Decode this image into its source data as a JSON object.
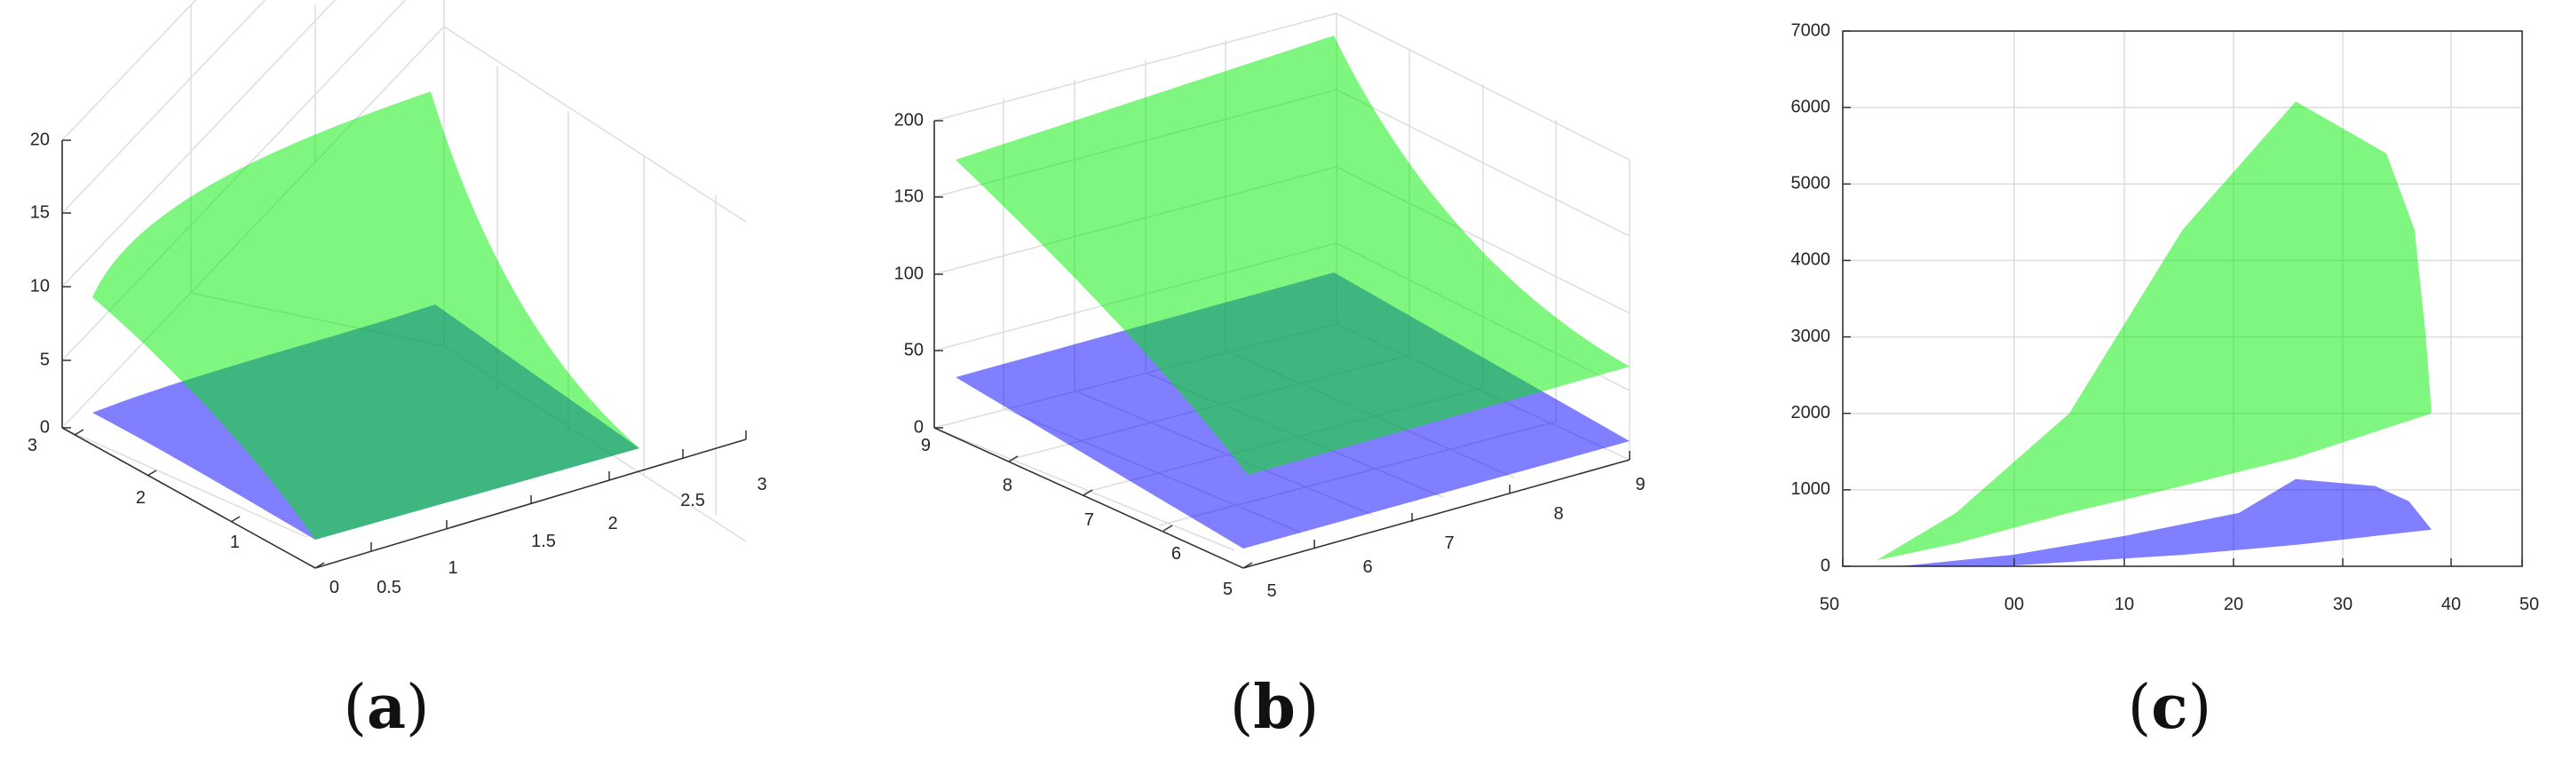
{
  "figure": {
    "panels": [
      {
        "caption_open": "(",
        "caption_letter": "a",
        "caption_close": ")"
      },
      {
        "caption_open": "(",
        "caption_letter": "b",
        "caption_close": ")"
      },
      {
        "caption_open": "(",
        "caption_letter": "c",
        "caption_close": ")"
      }
    ]
  },
  "colors": {
    "upper_surface": "#00ee00",
    "lower_surface": "#0000ff",
    "grid": "#dddddd",
    "axis": "#333333"
  },
  "chart_data": [
    {
      "type": "surface3d",
      "title": "",
      "zlabel": "",
      "x_ticks": [
        "0.5",
        "1",
        "1.5",
        "2",
        "2.5",
        "3"
      ],
      "y_ticks": [
        "0",
        "1",
        "2",
        "3"
      ],
      "z_ticks": [
        "0",
        "5",
        "10",
        "15",
        "20"
      ],
      "xlim": [
        0.5,
        3
      ],
      "ylim": [
        0,
        3
      ],
      "zlim": [
        0,
        20
      ],
      "grid": true,
      "surfaces": [
        {
          "name": "",
          "color": "upper_surface",
          "corners": {
            "x_min_y_min": 0,
            "x_max_y_min": 0,
            "x_min_y_max": 9,
            "x_max_y_max": 20
          }
        },
        {
          "name": "",
          "color": "lower_surface",
          "corners": {
            "x_min_y_min": 0,
            "x_max_y_min": 0,
            "x_min_y_max": 1,
            "x_max_y_max": 5
          }
        }
      ]
    },
    {
      "type": "surface3d",
      "title": "",
      "zlabel": "",
      "x_ticks": [
        "5",
        "6",
        "7",
        "8",
        "9"
      ],
      "y_ticks": [
        "5",
        "6",
        "7",
        "8",
        "9"
      ],
      "z_ticks": [
        "0",
        "50",
        "100",
        "150",
        "200"
      ],
      "xlim": [
        5,
        9
      ],
      "ylim": [
        5,
        9
      ],
      "zlim": [
        0,
        200
      ],
      "grid": true,
      "surfaces": [
        {
          "name": "",
          "color": "upper_surface",
          "corners": {
            "x_min_y_min": 20,
            "x_max_y_min": 40,
            "x_min_y_max": 180,
            "x_max_y_max": 200
          }
        },
        {
          "name": "",
          "color": "lower_surface",
          "corners": {
            "x_min_y_min": 0,
            "x_max_y_min": 0,
            "x_min_y_max": 35,
            "x_max_y_max": 40
          }
        }
      ]
    },
    {
      "type": "area",
      "title": "",
      "xlabel": "",
      "ylabel": "",
      "x_ticks": [
        "50",
        "00",
        "10",
        "20",
        "30",
        "40",
        "50"
      ],
      "y_ticks": [
        "0",
        "1000",
        "2000",
        "3000",
        "4000",
        "5000",
        "6000",
        "7000"
      ],
      "xlim": [
        0,
        6
      ],
      "ylim": [
        0,
        7000
      ],
      "grid": true,
      "series": [
        {
          "name": "",
          "color": "upper_surface",
          "upper": [
            [
              0.3,
              80
            ],
            [
              1.0,
              700
            ],
            [
              2.0,
              2000
            ],
            [
              3.0,
              4400
            ],
            [
              4.0,
              6080
            ],
            [
              4.8,
              5400
            ],
            [
              5.05,
              4400
            ],
            [
              5.15,
              3000
            ],
            [
              5.2,
              2000
            ]
          ],
          "lower": [
            [
              0.3,
              80
            ],
            [
              1.0,
              300
            ],
            [
              2.0,
              700
            ],
            [
              3.0,
              1050
            ],
            [
              4.0,
              1420
            ],
            [
              5.2,
              2000
            ]
          ]
        },
        {
          "name": "",
          "color": "lower_surface",
          "upper": [
            [
              0.5,
              0
            ],
            [
              1.5,
              150
            ],
            [
              2.5,
              400
            ],
            [
              3.5,
              700
            ],
            [
              4.0,
              1140
            ],
            [
              4.7,
              1050
            ],
            [
              5.0,
              850
            ],
            [
              5.2,
              480
            ]
          ],
          "lower": [
            [
              0.5,
              0
            ],
            [
              1.5,
              10
            ],
            [
              3.0,
              150
            ],
            [
              4.0,
              280
            ],
            [
              5.2,
              480
            ]
          ]
        }
      ]
    }
  ]
}
